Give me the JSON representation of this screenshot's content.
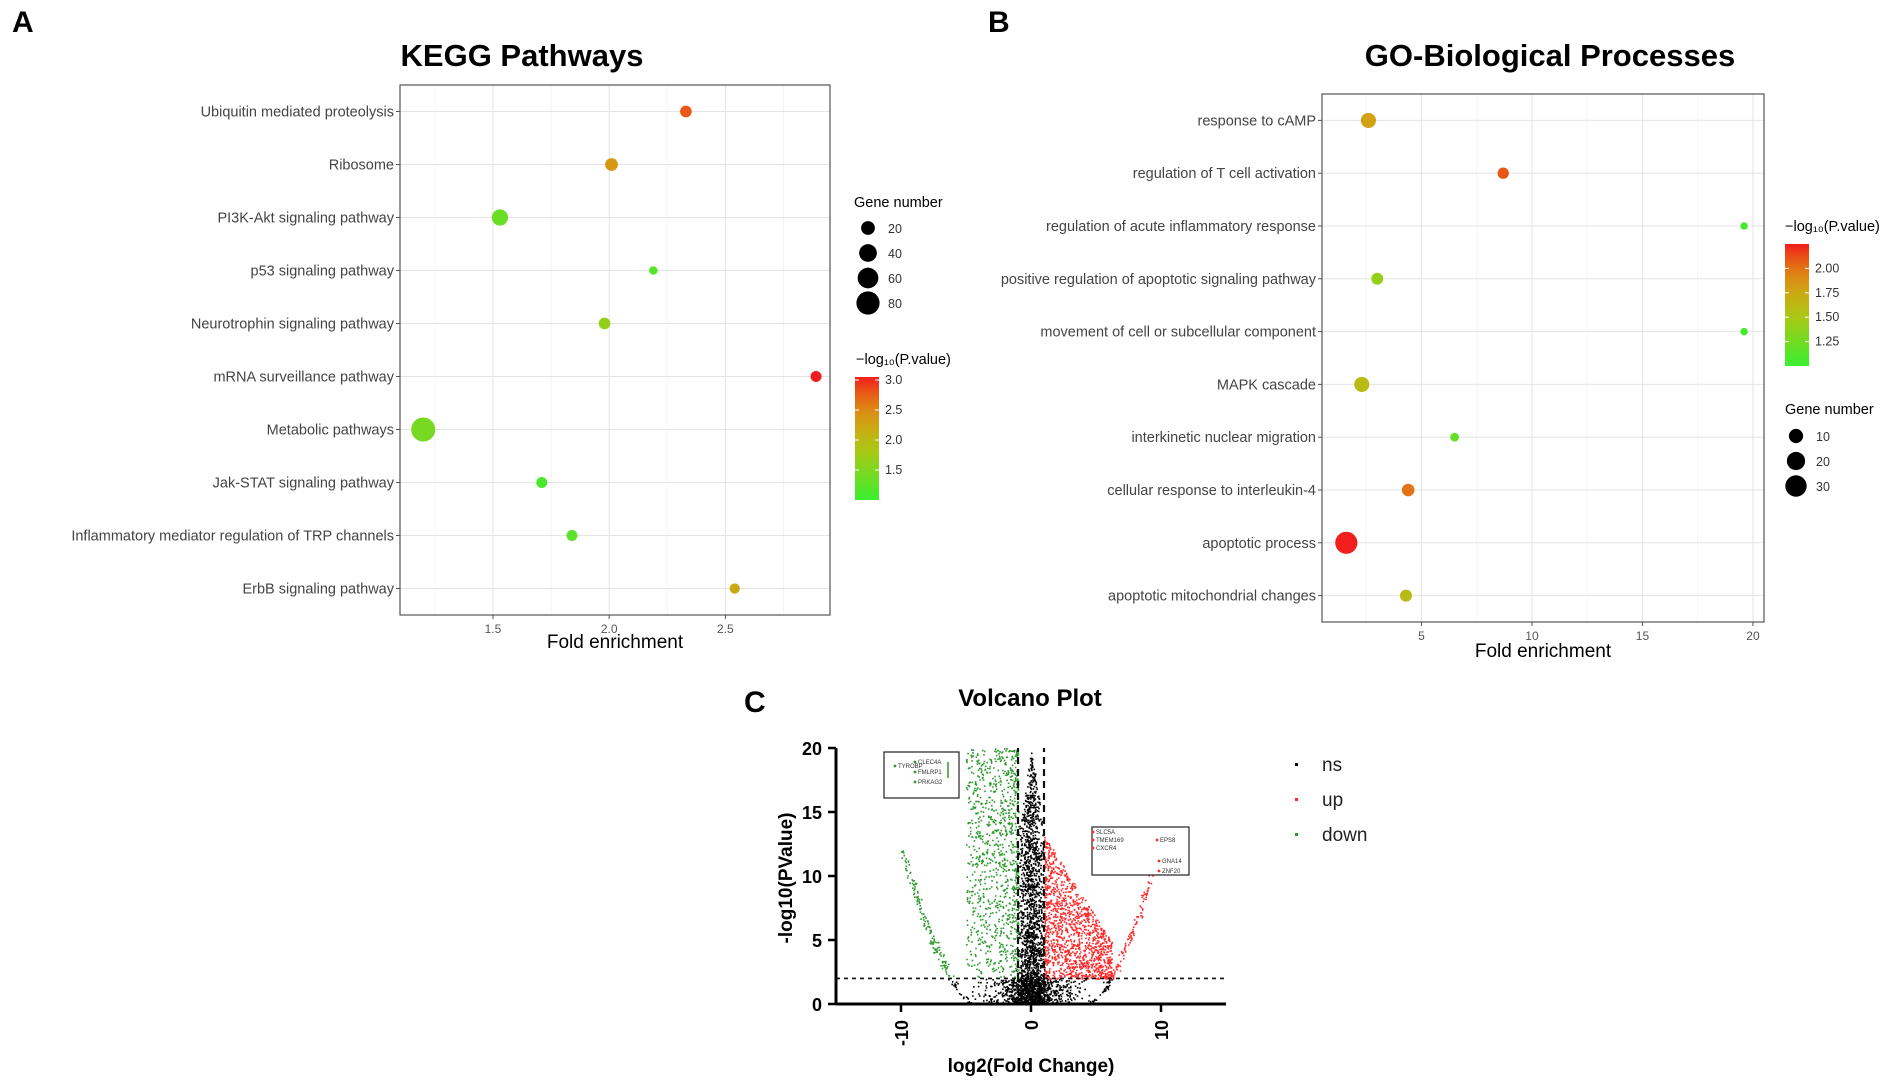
{
  "panels": [
    {
      "letter": "A",
      "chart_data": {
        "type": "scatter",
        "title": "KEGG Pathways",
        "xlabel": "Fold enrichment",
        "ylabel": "",
        "xlim": [
          1.1,
          2.95
        ],
        "xticks": [
          1.5,
          2.0,
          2.5
        ],
        "xtick_labels": [
          "1.5",
          "2.0",
          "2.5"
        ],
        "categories": [
          "Ubiquitin mediated proteolysis",
          "Ribosome",
          "PI3K-Akt signaling pathway",
          "p53 signaling pathway",
          "Neurotrophin signaling pathway",
          "mRNA surveillance pathway",
          "Metabolic pathways",
          "Jak-STAT signaling pathway",
          "Inflammatory mediator regulation of TRP channels",
          "ErbB signaling pathway"
        ],
        "x": [
          2.33,
          2.01,
          1.53,
          2.19,
          1.98,
          2.89,
          1.2,
          1.71,
          1.84,
          2.54
        ],
        "gene_number": [
          12,
          16,
          32,
          4,
          12,
          10,
          88,
          10,
          10,
          8
        ],
        "neg_log10_pvalue": [
          2.8,
          2.4,
          1.35,
          1.2,
          1.65,
          3.05,
          1.45,
          1.1,
          1.25,
          2.2
        ],
        "size_legend": {
          "title": "Gene number",
          "values": [
            20,
            40,
            60,
            80
          ],
          "labels": [
            "20",
            "40",
            "60",
            "80"
          ]
        },
        "color_legend": {
          "title": "−log₁₀(P.value)",
          "range": [
            1.0,
            3.05
          ],
          "ticks": [
            1.5,
            2.0,
            2.5,
            3.0
          ],
          "labels": [
            "1.5",
            "2.0",
            "2.5",
            "3.0"
          ],
          "low_color": "#33ee33",
          "high_color": "#ff2020"
        }
      }
    },
    {
      "letter": "B",
      "chart_data": {
        "type": "scatter",
        "title": "GO-Biological Processes",
        "xlabel": "Fold enrichment",
        "ylabel": "",
        "xlim": [
          0.5,
          20.5
        ],
        "xticks": [
          5,
          10,
          15,
          20
        ],
        "xtick_labels": [
          "5",
          "10",
          "15",
          "20"
        ],
        "categories": [
          "response to cAMP",
          "regulation of T cell activation",
          "regulation of acute inflammatory response",
          "positive regulation of apoptotic signaling pathway",
          "movement of cell or subcellular component",
          "MAPK cascade",
          "interkinetic nuclear migration",
          "cellular response to interleukin-4",
          "apoptotic process",
          "apoptotic mitochondrial changes"
        ],
        "x": [
          2.6,
          8.7,
          19.6,
          3.0,
          19.6,
          2.3,
          6.5,
          4.4,
          1.6,
          4.3
        ],
        "gene_number": [
          12,
          5,
          1,
          6,
          1,
          12,
          2,
          7,
          33,
          6
        ],
        "neg_log10_pvalue": [
          1.8,
          2.1,
          1.05,
          1.4,
          1.05,
          1.6,
          1.2,
          2.0,
          2.25,
          1.6
        ],
        "size_legend": {
          "title": "Gene number",
          "values": [
            10,
            20,
            30
          ],
          "labels": [
            "10",
            "20",
            "30"
          ]
        },
        "color_legend": {
          "title": "−log₁₀(P.value)",
          "range": [
            1.0,
            2.25
          ],
          "ticks": [
            1.25,
            1.5,
            1.75,
            2.0
          ],
          "labels": [
            "1.25",
            "1.50",
            "1.75",
            "2.00"
          ],
          "low_color": "#33ee33",
          "high_color": "#ff2020"
        }
      }
    },
    {
      "letter": "C",
      "chart_data": {
        "type": "scatter",
        "title": "Volcano Plot",
        "xlabel": "log2(Fold Change)",
        "ylabel": "-log10(PValue)",
        "xlim": [
          -15,
          15
        ],
        "ylim": [
          0,
          20
        ],
        "xticks": [
          -10,
          0,
          10
        ],
        "xtick_labels": [
          "-10",
          "0",
          "10"
        ],
        "yticks": [
          0,
          5,
          10,
          15,
          20
        ],
        "ytick_labels": [
          "0",
          "5",
          "10",
          "15",
          "20"
        ],
        "thresholds": {
          "log2fc_left": -1,
          "log2fc_right": 1,
          "neg_log10_p": 2
        },
        "series": [
          {
            "name": "ns",
            "color": "#000000"
          },
          {
            "name": "up",
            "color": "#ff2a2a"
          },
          {
            "name": "down",
            "color": "#2e9a2e"
          }
        ],
        "labeled_genes_down": [
          "TYROBP",
          "CLEC4A",
          "FMLRP1",
          "PRKAG2"
        ],
        "labeled_genes_up": [
          "SLC5A",
          "TMEM169",
          "CXCR4",
          "EPS8",
          "GNA14",
          "ZNF20"
        ]
      }
    }
  ]
}
